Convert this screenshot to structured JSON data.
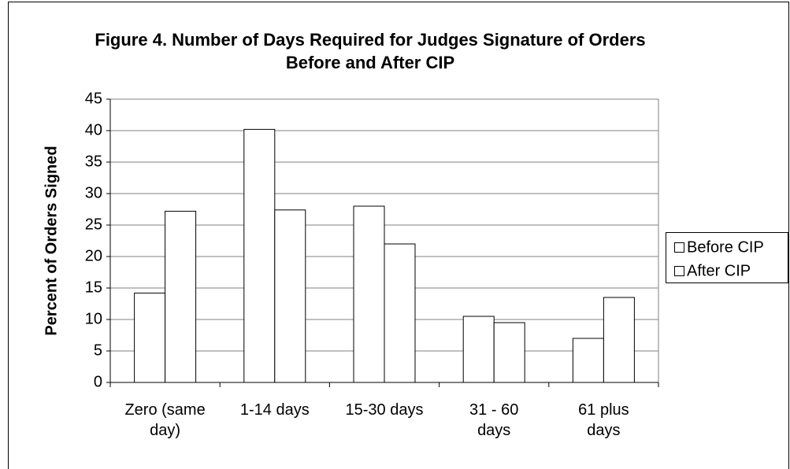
{
  "chart_data": {
    "type": "bar",
    "title": "Figure 4. Number of Days Required for Judges Signature of Orders Before and After CIP",
    "y_label": "Percent of Orders Signed",
    "categories": [
      "Zero (same day)",
      "1-14 days",
      "15-30 days",
      "31 - 60 days",
      "61 plus days"
    ],
    "series": [
      {
        "name": "Before CIP",
        "color": "#ffffff",
        "values": [
          14.2,
          40.2,
          28,
          10.5,
          7
        ]
      },
      {
        "name": "After CIP",
        "color": "#ffffff",
        "values": [
          27.2,
          27.4,
          22,
          9.5,
          13.5
        ]
      }
    ],
    "ylim": [
      0,
      45
    ],
    "yticks": [
      0,
      5,
      10,
      15,
      20,
      25,
      30,
      35,
      40,
      45
    ],
    "grid": true,
    "legend": "right"
  }
}
